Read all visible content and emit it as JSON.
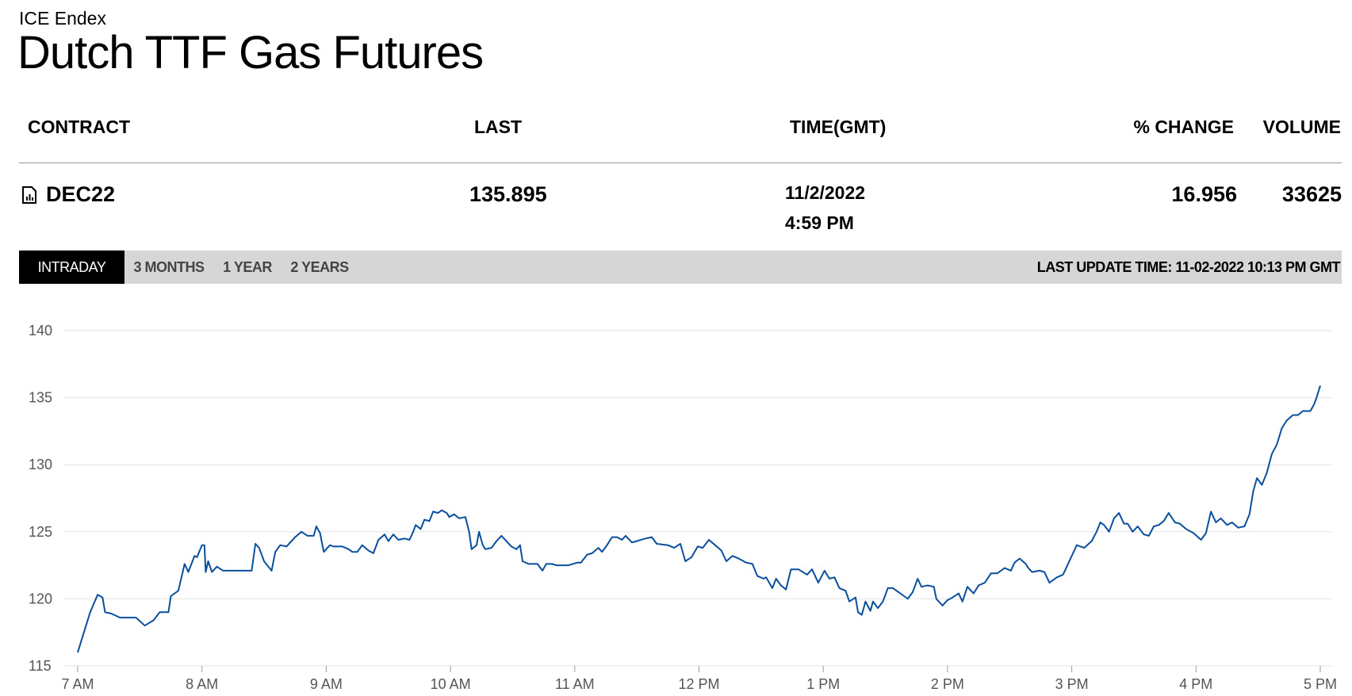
{
  "header": {
    "source": "ICE Endex",
    "title": "Dutch TTF Gas Futures"
  },
  "table": {
    "columns": [
      "CONTRACT",
      "LAST",
      "TIME(GMT)",
      "% CHANGE",
      "VOLUME"
    ],
    "rows": [
      {
        "contract": "DEC22",
        "last": 135.895,
        "date": "11/2/2022",
        "time": "4:59 PM",
        "change": 16.956,
        "volume": 33625
      }
    ]
  },
  "tabs": {
    "items": [
      "INTRADAY",
      "3 MONTHS",
      "1 YEAR",
      "2 YEARS"
    ],
    "active": "INTRADAY",
    "last_update": "LAST UPDATE TIME: 11-02-2022 10:13 PM GMT"
  },
  "chart_data": {
    "type": "line",
    "color": "#0a4f9e",
    "grid": true,
    "xlim": [
      7,
      17
    ],
    "xticks": [
      {
        "value": 7,
        "label": "7 AM"
      },
      {
        "value": 8,
        "label": "8 AM"
      },
      {
        "value": 9,
        "label": "9 AM"
      },
      {
        "value": 10,
        "label": "10 AM"
      },
      {
        "value": 11,
        "label": "11 AM"
      },
      {
        "value": 12,
        "label": "12 PM"
      },
      {
        "value": 13,
        "label": "1 PM"
      },
      {
        "value": 14,
        "label": "2 PM"
      },
      {
        "value": 15,
        "label": "3 PM"
      },
      {
        "value": 16,
        "label": "4 PM"
      },
      {
        "value": 17,
        "label": "5 PM"
      }
    ],
    "ylim": [
      115,
      140
    ],
    "yticks": [
      115,
      120,
      125,
      130,
      135,
      140
    ],
    "x": [
      7.0,
      7.1,
      7.16,
      7.2,
      7.22,
      7.27,
      7.34,
      7.47,
      7.54,
      7.61,
      7.66,
      7.73,
      7.75,
      7.81,
      7.86,
      7.89,
      7.94,
      7.96,
      8.0,
      8.02,
      8.03,
      8.05,
      8.08,
      8.12,
      8.17,
      8.26,
      8.4,
      8.43,
      8.46,
      8.5,
      8.56,
      8.59,
      8.63,
      8.68,
      8.75,
      8.8,
      8.85,
      8.9,
      8.92,
      8.95,
      8.98,
      9.03,
      9.06,
      9.13,
      9.18,
      9.21,
      9.25,
      9.29,
      9.34,
      9.38,
      9.42,
      9.47,
      9.5,
      9.54,
      9.58,
      9.63,
      9.67,
      9.7,
      9.72,
      9.76,
      9.79,
      9.83,
      9.86,
      9.9,
      9.93,
      9.97,
      9.99,
      10.03,
      10.07,
      10.12,
      10.15,
      10.17,
      10.21,
      10.23,
      10.26,
      10.28,
      10.33,
      10.37,
      10.41,
      10.45,
      10.49,
      10.53,
      10.56,
      10.58,
      10.63,
      10.7,
      10.74,
      10.77,
      10.82,
      10.85,
      10.95,
      11.02,
      11.05,
      11.1,
      11.14,
      11.19,
      11.22,
      11.26,
      11.3,
      11.34,
      11.38,
      11.41,
      11.46,
      11.5,
      11.57,
      11.62,
      11.66,
      11.75,
      11.8,
      11.85,
      11.89,
      11.94,
      11.99,
      12.03,
      12.08,
      12.13,
      12.18,
      12.22,
      12.27,
      12.32,
      12.38,
      12.43,
      12.47,
      12.52,
      12.54,
      12.59,
      12.62,
      12.66,
      12.7,
      12.74,
      12.8,
      12.87,
      12.91,
      12.96,
      13.01,
      13.05,
      13.09,
      13.13,
      13.18,
      13.21,
      13.26,
      13.28,
      13.31,
      13.34,
      13.38,
      13.4,
      13.44,
      13.48,
      13.52,
      13.56,
      13.62,
      13.68,
      13.72,
      13.76,
      13.79,
      13.84,
      13.89,
      13.91,
      13.96,
      14.0,
      14.04,
      14.09,
      14.12,
      14.16,
      14.21,
      14.25,
      14.3,
      14.35,
      14.4,
      14.46,
      14.51,
      14.54,
      14.58,
      14.63,
      14.65,
      14.68,
      14.74,
      14.78,
      14.82,
      14.88,
      14.93,
      14.97,
      15.02,
      15.04,
      15.1,
      15.16,
      15.2,
      15.23,
      15.26,
      15.3,
      15.34,
      15.38,
      15.42,
      15.45,
      15.49,
      15.53,
      15.58,
      15.62,
      15.66,
      15.7,
      15.74,
      15.78,
      15.83,
      15.87,
      15.92,
      15.98,
      16.04,
      16.08,
      16.12,
      16.16,
      16.2,
      16.25,
      16.29,
      16.34,
      16.39,
      16.43,
      16.46,
      16.49,
      16.53,
      16.57,
      16.61,
      16.65,
      16.69,
      16.73,
      16.78,
      16.82,
      16.86,
      16.92,
      16.95,
      16.97,
      17.0
    ],
    "values": [
      116.0,
      119.0,
      120.3,
      120.1,
      119.0,
      118.9,
      118.6,
      118.6,
      118.0,
      118.4,
      119.0,
      119.0,
      120.2,
      120.6,
      122.6,
      122.0,
      123.2,
      123.1,
      124.0,
      124.0,
      122.0,
      122.8,
      122.0,
      122.4,
      122.1,
      122.1,
      122.1,
      124.1,
      123.8,
      122.8,
      122.1,
      123.5,
      124.0,
      123.9,
      124.6,
      125.0,
      124.7,
      124.7,
      125.4,
      124.9,
      123.5,
      124.0,
      123.9,
      123.9,
      123.7,
      123.5,
      123.5,
      124.0,
      123.6,
      123.4,
      124.4,
      124.8,
      124.3,
      124.8,
      124.4,
      124.5,
      124.4,
      125.0,
      125.5,
      125.2,
      125.9,
      125.8,
      126.5,
      126.4,
      126.6,
      126.4,
      126.1,
      126.3,
      126.0,
      126.1,
      125.0,
      123.7,
      124.0,
      125.0,
      124.0,
      123.7,
      123.8,
      124.3,
      124.7,
      124.3,
      123.9,
      123.7,
      124.0,
      122.8,
      122.6,
      122.6,
      122.1,
      122.6,
      122.6,
      122.5,
      122.5,
      122.7,
      122.7,
      123.3,
      123.4,
      123.8,
      123.5,
      124.0,
      124.6,
      124.6,
      124.4,
      124.7,
      124.2,
      124.3,
      124.5,
      124.6,
      124.1,
      124.0,
      123.8,
      124.1,
      122.8,
      123.1,
      123.9,
      123.8,
      124.4,
      124.0,
      123.6,
      122.8,
      123.2,
      123.0,
      122.7,
      122.6,
      121.7,
      121.5,
      121.6,
      120.8,
      121.5,
      121.0,
      120.7,
      122.2,
      122.2,
      121.8,
      122.2,
      121.2,
      122.1,
      121.5,
      121.6,
      120.8,
      120.6,
      119.8,
      120.1,
      119.0,
      118.8,
      119.8,
      119.1,
      119.8,
      119.3,
      119.8,
      120.8,
      120.8,
      120.4,
      120.0,
      120.5,
      121.5,
      120.9,
      121.0,
      120.9,
      120.0,
      119.5,
      119.9,
      120.1,
      120.4,
      119.8,
      120.9,
      120.4,
      121.0,
      121.2,
      121.9,
      121.9,
      122.3,
      122.1,
      122.7,
      123.0,
      122.6,
      122.3,
      122.0,
      122.1,
      122.0,
      121.2,
      121.6,
      121.8,
      122.6,
      123.6,
      124.0,
      123.8,
      124.3,
      125.0,
      125.7,
      125.5,
      125.0,
      126.0,
      126.4,
      125.6,
      125.6,
      125.0,
      125.4,
      124.8,
      124.7,
      125.4,
      125.5,
      125.8,
      126.4,
      125.7,
      125.6,
      125.2,
      124.9,
      124.4,
      124.9,
      126.5,
      125.7,
      126.0,
      125.5,
      125.7,
      125.3,
      125.4,
      126.3,
      128.0,
      129.0,
      128.5,
      129.4,
      130.8,
      131.5,
      132.7,
      133.3,
      133.7,
      133.7,
      134.0,
      134.0,
      134.5,
      135.0,
      135.9
    ]
  }
}
